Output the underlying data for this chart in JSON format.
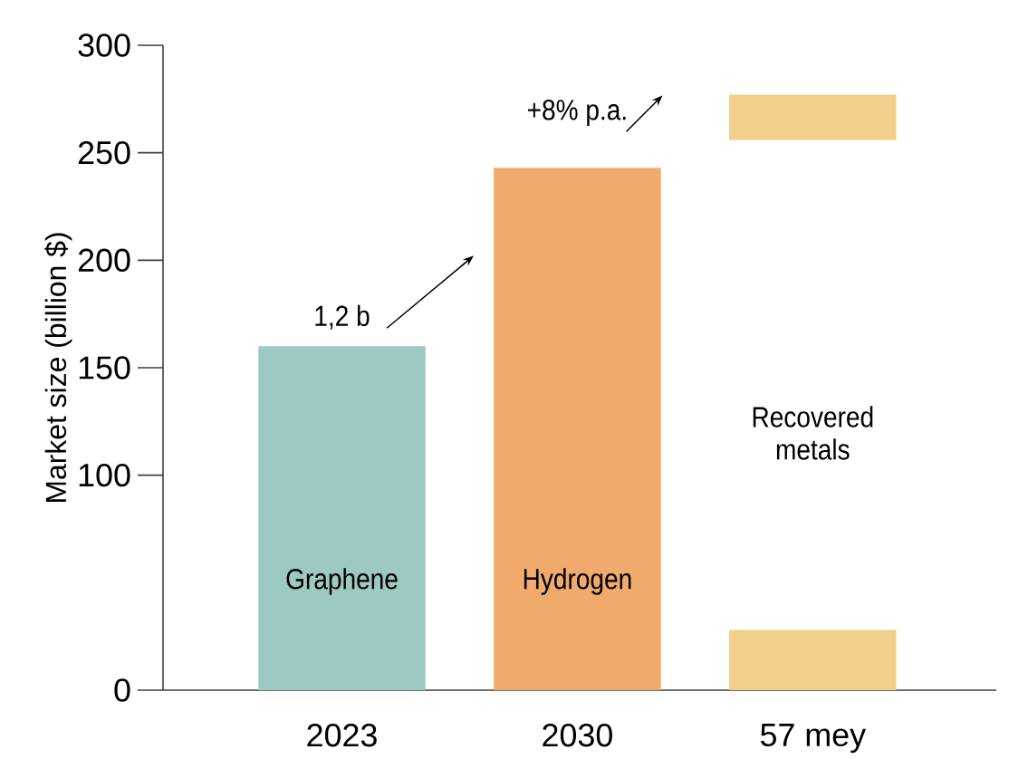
{
  "chart_data": {
    "type": "bar",
    "ylabel": "Market size (billion $)",
    "categories": [
      "2023",
      "2030",
      "57 mey"
    ],
    "series": [
      {
        "colors": [
          "#9dc9c3",
          "#f0ab6c",
          "#f0cf8a"
        ],
        "values": [
          160,
          243,
          28
        ]
      },
      {
        "color": "#f0cf8a",
        "values": [
          null,
          null,
          21
        ],
        "base": [
          null,
          null,
          256
        ]
      }
    ],
    "ylim": [
      0,
      300
    ],
    "yticks": [
      0,
      100,
      150,
      200,
      250,
      300
    ],
    "annotations": [
      "Graphene",
      "Hydrogen",
      "Recovered metals",
      "1,2 b",
      "+8% p.a."
    ],
    "grid": false
  }
}
